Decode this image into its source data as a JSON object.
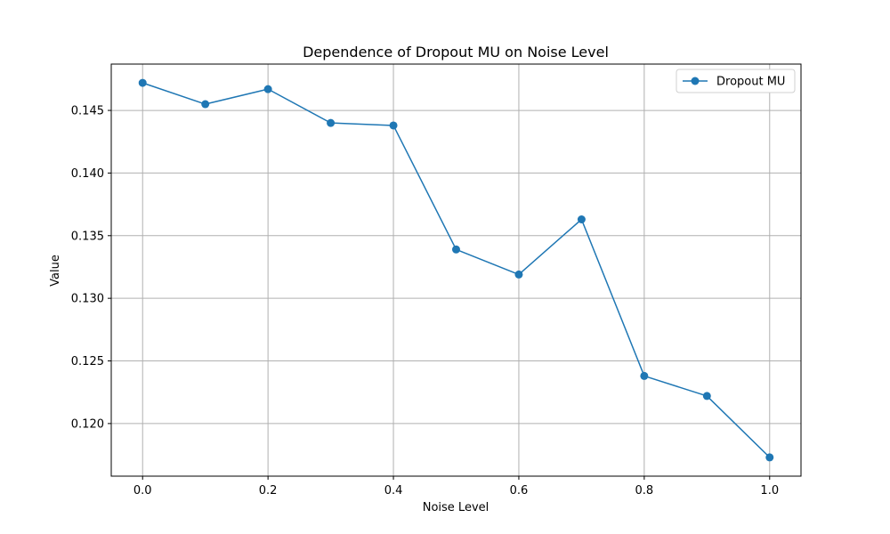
{
  "chart_data": {
    "type": "line",
    "title": "Dependence of Dropout MU on Noise Level",
    "xlabel": "Noise Level",
    "ylabel": "Value",
    "xlim": [
      -0.05,
      1.05
    ],
    "ylim": [
      0.1158,
      0.1487
    ],
    "xticks": [
      0.0,
      0.2,
      0.4,
      0.6,
      0.8,
      1.0
    ],
    "xtick_labels": [
      "0.0",
      "0.2",
      "0.4",
      "0.6",
      "0.8",
      "1.0"
    ],
    "yticks": [
      0.12,
      0.125,
      0.13,
      0.135,
      0.14,
      0.145
    ],
    "ytick_labels": [
      "0.120",
      "0.125",
      "0.130",
      "0.135",
      "0.140",
      "0.145"
    ],
    "grid": true,
    "legend_position": "top-right",
    "series": [
      {
        "name": "Dropout MU",
        "color": "#1f77b4",
        "marker": "circle",
        "x": [
          0.0,
          0.1,
          0.2,
          0.3,
          0.4,
          0.5,
          0.6,
          0.7,
          0.8,
          0.9,
          1.0
        ],
        "y": [
          0.1472,
          0.1455,
          0.1467,
          0.144,
          0.1438,
          0.1339,
          0.1319,
          0.1363,
          0.1238,
          0.1222,
          0.1173
        ]
      }
    ]
  }
}
